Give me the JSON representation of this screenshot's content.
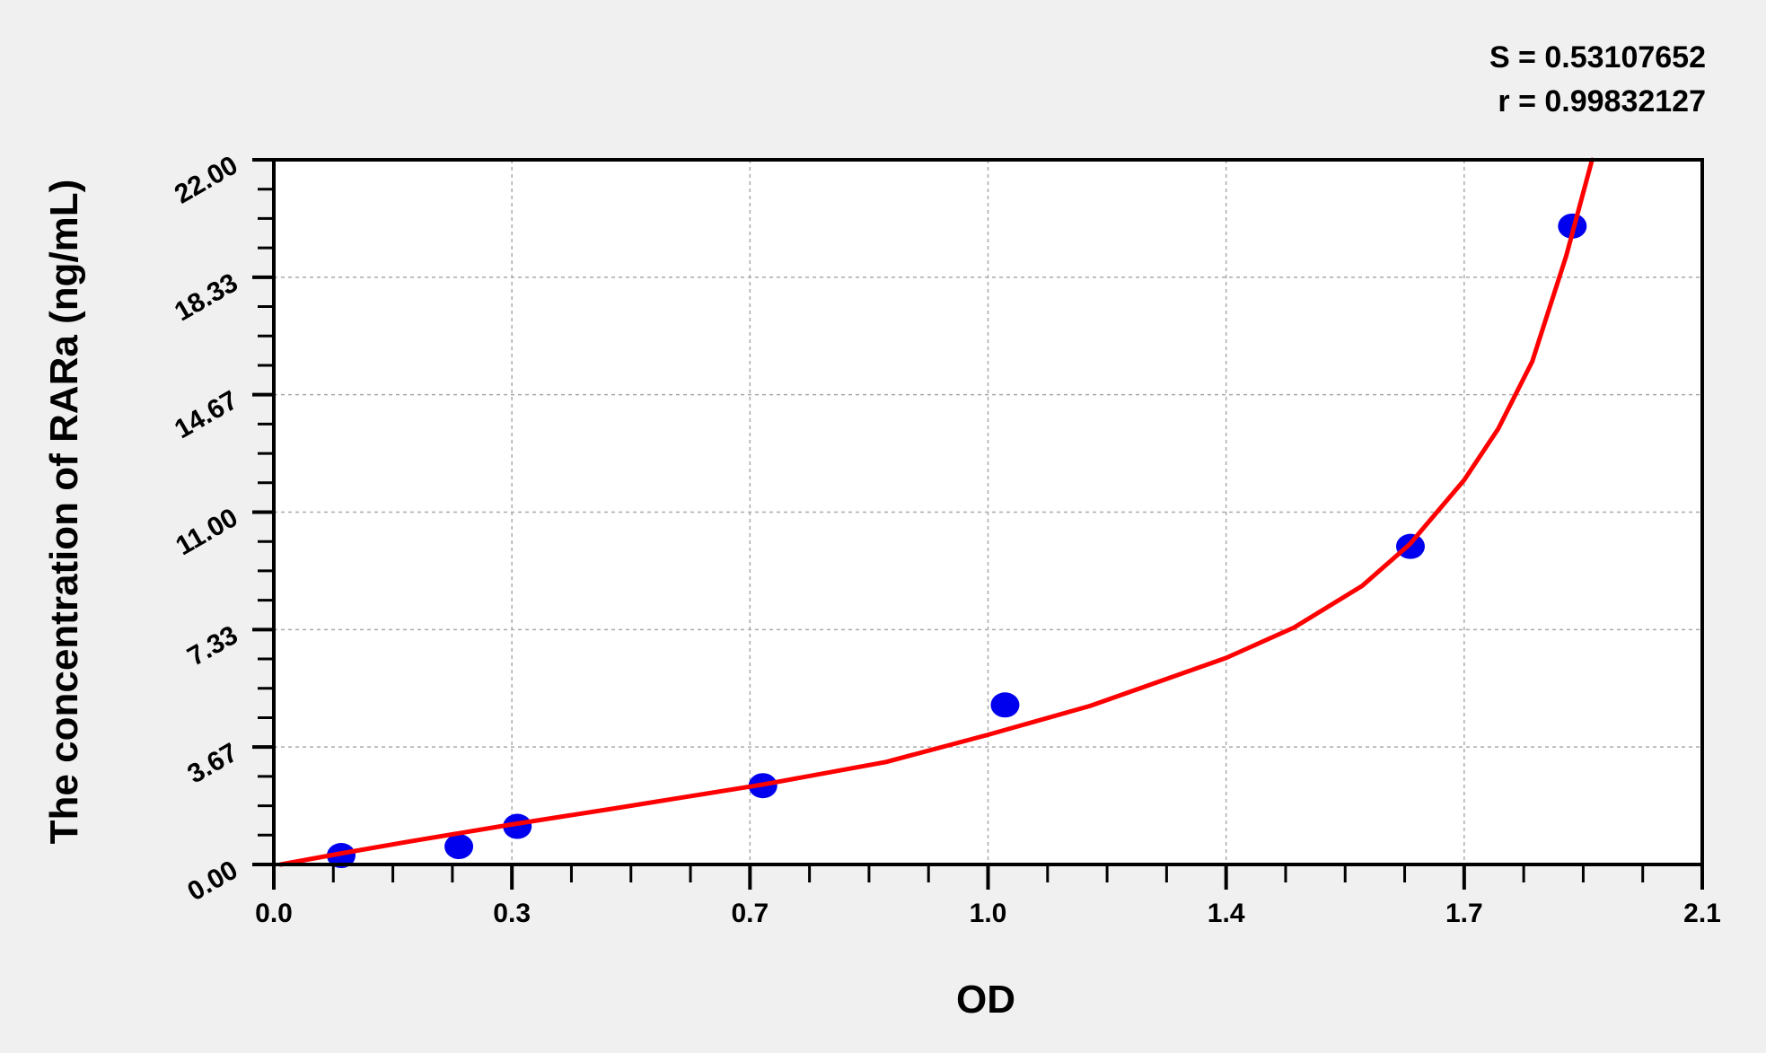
{
  "chart_data": {
    "type": "scatter",
    "title": "",
    "xlabel": "OD",
    "ylabel": "The concentration of RARa (ng/mL)",
    "xlim": [
      0,
      2.1
    ],
    "ylim": [
      0,
      22
    ],
    "x_ticks": [
      0,
      0.35,
      0.7,
      1.05,
      1.4,
      1.75,
      2.1
    ],
    "x_tick_labels": [
      "0.0",
      "0.3",
      "0.7",
      "1.0",
      "1.4",
      "1.7",
      "2.1"
    ],
    "y_ticks": [
      0,
      3.667,
      7.333,
      11,
      14.667,
      18.333,
      22
    ],
    "y_tick_labels": [
      "0.00",
      "3.67",
      "7.33",
      "11.00",
      "14.67",
      "18.33",
      "22.00"
    ],
    "grid": true,
    "stats": {
      "s_label": "S = 0.53107652",
      "r_label": "r = 0.99832127"
    },
    "series": [
      {
        "kind": "points",
        "color": "#0000ee",
        "x": [
          0.099,
          0.272,
          0.358,
          0.719,
          1.075,
          1.671,
          1.909
        ],
        "y": [
          0.28,
          0.56,
          1.19,
          2.46,
          4.98,
          9.93,
          19.93
        ]
      },
      {
        "kind": "fit-curve",
        "color": "#ff0000",
        "x": [
          0.01,
          0.1,
          0.2,
          0.35,
          0.5,
          0.72,
          0.9,
          1.05,
          1.2,
          1.4,
          1.5,
          1.6,
          1.67,
          1.75,
          1.8,
          1.85,
          1.9,
          1.938
        ],
        "y": [
          0.0,
          0.35,
          0.72,
          1.25,
          1.75,
          2.5,
          3.2,
          4.05,
          4.95,
          6.45,
          7.4,
          8.7,
          10.0,
          12.0,
          13.6,
          15.7,
          19.0,
          22.0
        ]
      }
    ]
  }
}
